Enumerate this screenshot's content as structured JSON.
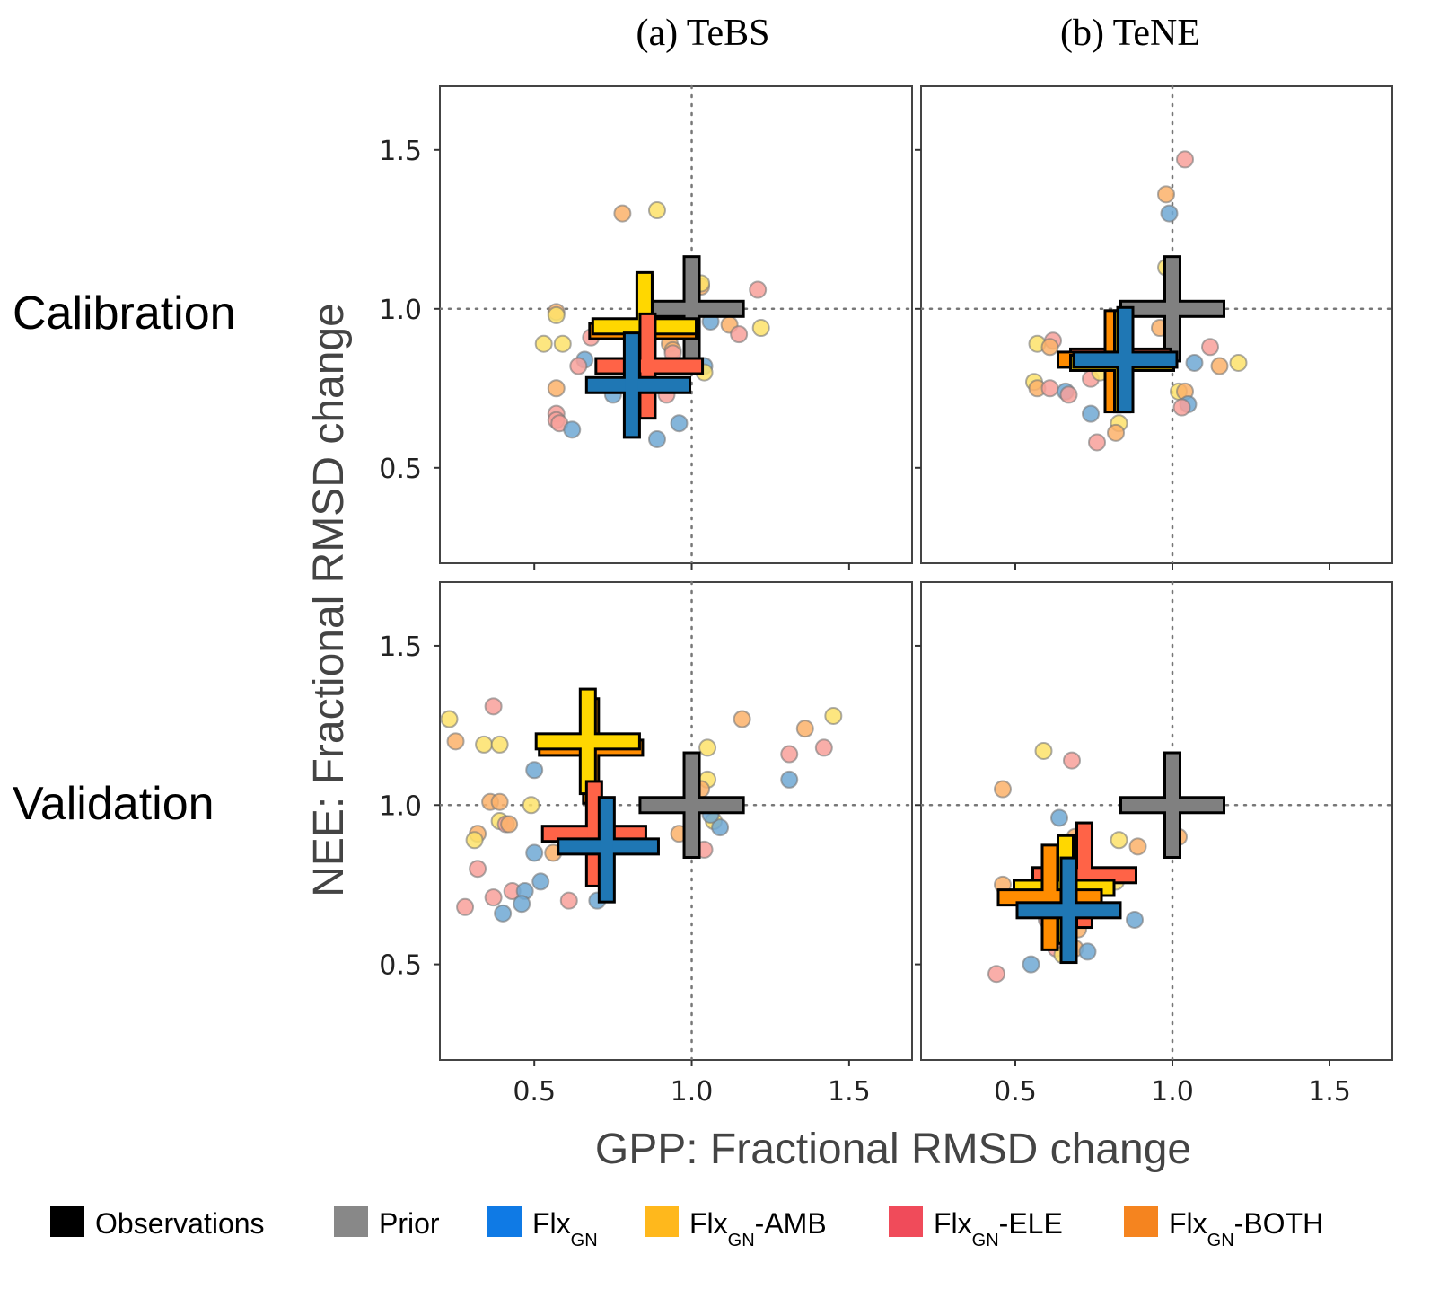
{
  "chart_data": {
    "type": "scatter",
    "column_titles": [
      "(a) TeBS",
      "(b) TeNE"
    ],
    "row_labels": [
      "Calibration",
      "Validation"
    ],
    "xlabel": "GPP: Fractional RMSD change",
    "ylabel": "NEE: Fractional RMSD change",
    "xlim": [
      0.2,
      1.7
    ],
    "ylim": [
      0.2,
      1.7
    ],
    "xticks": [
      0.5,
      1.0,
      1.5
    ],
    "yticks": [
      0.5,
      1.0,
      1.5
    ],
    "xtick_labels": [
      "0.5",
      "1.0",
      "1.5"
    ],
    "ytick_labels": [
      "0.5",
      "1.0",
      "1.5"
    ],
    "reference_lines": {
      "x": 1.0,
      "y": 1.0,
      "style": "dotted"
    },
    "grid": false,
    "legend": {
      "placement": "bottom",
      "entries": [
        {
          "key": "obs",
          "label": "Observations",
          "sub": "",
          "suffix": "",
          "color": "#000000"
        },
        {
          "key": "prior",
          "label": "Prior",
          "sub": "",
          "suffix": "",
          "color": "#888888"
        },
        {
          "key": "flx",
          "label": "Flx",
          "sub": "GN",
          "suffix": "",
          "color": "#0f7ae5"
        },
        {
          "key": "amb",
          "label": "Flx",
          "sub": "GN",
          "suffix": "-AMB",
          "color": "#ffb81c"
        },
        {
          "key": "ele",
          "label": "Flx",
          "sub": "GN",
          "suffix": "-ELE",
          "color": "#f04b5a"
        },
        {
          "key": "both",
          "label": "Flx",
          "sub": "GN",
          "suffix": "-BOTH",
          "color": "#f5841f"
        }
      ]
    },
    "series_colors": {
      "prior": "#808080",
      "flx": "#1f77b4",
      "amb": "#ffd700",
      "ele": "#ff6347",
      "both": "#ff8c00"
    },
    "point_colors": {
      "flx": "#6fa8d4",
      "amb": "#fde26a",
      "ele": "#f8a09a",
      "both": "#fbb16a"
    },
    "panels": [
      {
        "id": "tebs-calibration",
        "column": 0,
        "row": 0,
        "crosses": [
          {
            "series": "prior",
            "x": 1.0,
            "y": 1.0,
            "x_range": [
              0.84,
              1.16
            ],
            "y_range": [
              0.84,
              1.16
            ]
          },
          {
            "series": "flx",
            "x": 0.81,
            "y": 0.76,
            "x_range": [
              0.67,
              0.99
            ],
            "y_range": [
              0.6,
              0.92
            ]
          },
          {
            "series": "ele",
            "x": 0.86,
            "y": 0.82,
            "x_range": [
              0.7,
              1.03
            ],
            "y_range": [
              0.66,
              0.98
            ]
          },
          {
            "series": "amb",
            "x": 0.85,
            "y": 0.945,
            "x_range": [
              0.69,
              1.01
            ],
            "y_range": [
              0.79,
              1.11
            ]
          },
          {
            "series": "both",
            "x": 0.85,
            "y": 0.93,
            "x_range": [
              0.68,
              1.01
            ],
            "y_range": [
              0.77,
              1.1
            ]
          }
        ],
        "points": [
          {
            "series": "both",
            "x": 0.78,
            "y": 1.3
          },
          {
            "series": "amb",
            "x": 0.89,
            "y": 1.31
          },
          {
            "series": "both",
            "x": 0.57,
            "y": 0.99
          },
          {
            "series": "amb",
            "x": 0.57,
            "y": 0.98
          },
          {
            "series": "amb",
            "x": 0.53,
            "y": 0.89
          },
          {
            "series": "amb",
            "x": 0.59,
            "y": 0.89
          },
          {
            "series": "ele",
            "x": 0.68,
            "y": 0.91
          },
          {
            "series": "flx",
            "x": 0.66,
            "y": 0.84
          },
          {
            "series": "ele",
            "x": 0.64,
            "y": 0.82
          },
          {
            "series": "both",
            "x": 0.57,
            "y": 0.75
          },
          {
            "series": "ele",
            "x": 0.57,
            "y": 0.67
          },
          {
            "series": "ele",
            "x": 0.57,
            "y": 0.65
          },
          {
            "series": "ele",
            "x": 0.58,
            "y": 0.64
          },
          {
            "series": "flx",
            "x": 0.62,
            "y": 0.62
          },
          {
            "series": "flx",
            "x": 0.75,
            "y": 0.73
          },
          {
            "series": "ele",
            "x": 0.92,
            "y": 0.73
          },
          {
            "series": "flx",
            "x": 0.96,
            "y": 0.64
          },
          {
            "series": "flx",
            "x": 0.89,
            "y": 0.59
          },
          {
            "series": "both",
            "x": 0.93,
            "y": 0.89
          },
          {
            "series": "both",
            "x": 0.94,
            "y": 0.87
          },
          {
            "series": "ele",
            "x": 0.94,
            "y": 0.86
          },
          {
            "series": "flx",
            "x": 1.04,
            "y": 0.82
          },
          {
            "series": "both",
            "x": 1.03,
            "y": 1.07
          },
          {
            "series": "amb",
            "x": 1.03,
            "y": 1.08
          },
          {
            "series": "flx",
            "x": 1.06,
            "y": 0.96
          },
          {
            "series": "both",
            "x": 1.12,
            "y": 0.95
          },
          {
            "series": "ele",
            "x": 1.15,
            "y": 0.92
          },
          {
            "series": "amb",
            "x": 1.22,
            "y": 0.94
          },
          {
            "series": "ele",
            "x": 1.21,
            "y": 1.06
          },
          {
            "series": "amb",
            "x": 1.04,
            "y": 0.8
          }
        ]
      },
      {
        "id": "tene-calibration",
        "column": 1,
        "row": 0,
        "crosses": [
          {
            "series": "prior",
            "x": 1.0,
            "y": 1.0,
            "x_range": [
              0.84,
              1.16
            ],
            "y_range": [
              0.84,
              1.16
            ]
          },
          {
            "series": "flx",
            "x": 0.85,
            "y": 0.84,
            "x_range": [
              0.69,
              1.01
            ],
            "y_range": [
              0.68,
              1.0
            ]
          },
          {
            "series": "amb",
            "x": 0.84,
            "y": 0.83,
            "x_range": [
              0.68,
              1.0
            ],
            "y_range": [
              0.68,
              0.99
            ]
          },
          {
            "series": "both",
            "x": 0.81,
            "y": 0.84,
            "x_range": [
              0.64,
              0.98
            ],
            "y_range": [
              0.68,
              0.99
            ]
          },
          {
            "series": "ele",
            "x": 0.84,
            "y": 0.85,
            "x_range": [
              0.68,
              0.99
            ],
            "y_range": [
              0.69,
              0.98
            ]
          }
        ],
        "points": [
          {
            "series": "ele",
            "x": 1.04,
            "y": 1.47
          },
          {
            "series": "both",
            "x": 0.98,
            "y": 1.36
          },
          {
            "series": "flx",
            "x": 0.99,
            "y": 1.3
          },
          {
            "series": "amb",
            "x": 0.98,
            "y": 1.13
          },
          {
            "series": "both",
            "x": 0.96,
            "y": 0.94
          },
          {
            "series": "amb",
            "x": 0.57,
            "y": 0.89
          },
          {
            "series": "ele",
            "x": 0.62,
            "y": 0.9
          },
          {
            "series": "both",
            "x": 0.61,
            "y": 0.88
          },
          {
            "series": "amb",
            "x": 0.56,
            "y": 0.77
          },
          {
            "series": "both",
            "x": 0.57,
            "y": 0.75
          },
          {
            "series": "ele",
            "x": 0.61,
            "y": 0.75
          },
          {
            "series": "flx",
            "x": 0.66,
            "y": 0.74
          },
          {
            "series": "ele",
            "x": 0.67,
            "y": 0.73
          },
          {
            "series": "ele",
            "x": 0.74,
            "y": 0.78
          },
          {
            "series": "amb",
            "x": 0.77,
            "y": 0.8
          },
          {
            "series": "flx",
            "x": 0.74,
            "y": 0.67
          },
          {
            "series": "amb",
            "x": 0.83,
            "y": 0.64
          },
          {
            "series": "both",
            "x": 0.82,
            "y": 0.61
          },
          {
            "series": "ele",
            "x": 0.76,
            "y": 0.58
          },
          {
            "series": "flx",
            "x": 1.07,
            "y": 0.83
          },
          {
            "series": "ele",
            "x": 1.12,
            "y": 0.88
          },
          {
            "series": "both",
            "x": 1.15,
            "y": 0.82
          },
          {
            "series": "amb",
            "x": 1.21,
            "y": 0.83
          },
          {
            "series": "amb",
            "x": 1.02,
            "y": 0.74
          },
          {
            "series": "both",
            "x": 1.04,
            "y": 0.74
          },
          {
            "series": "flx",
            "x": 1.05,
            "y": 0.7
          },
          {
            "series": "ele",
            "x": 1.03,
            "y": 0.69
          }
        ]
      },
      {
        "id": "tebs-validation",
        "column": 0,
        "row": 1,
        "crosses": [
          {
            "series": "prior",
            "x": 1.0,
            "y": 1.0,
            "x_range": [
              0.84,
              1.16
            ],
            "y_range": [
              0.84,
              1.16
            ]
          },
          {
            "series": "flx",
            "x": 0.73,
            "y": 0.87,
            "x_range": [
              0.58,
              0.89
            ],
            "y_range": [
              0.7,
              1.02
            ]
          },
          {
            "series": "ele",
            "x": 0.69,
            "y": 0.91,
            "x_range": [
              0.53,
              0.85
            ],
            "y_range": [
              0.75,
              1.07
            ]
          },
          {
            "series": "amb",
            "x": 0.67,
            "y": 1.2,
            "x_range": [
              0.51,
              0.83
            ],
            "y_range": [
              1.04,
              1.36
            ]
          },
          {
            "series": "both",
            "x": 0.68,
            "y": 1.18,
            "x_range": [
              0.52,
              0.84
            ],
            "y_range": [
              1.01,
              1.33
            ]
          }
        ],
        "points": [
          {
            "series": "amb",
            "x": 0.23,
            "y": 1.27
          },
          {
            "series": "both",
            "x": 0.25,
            "y": 1.2
          },
          {
            "series": "ele",
            "x": 0.37,
            "y": 1.31
          },
          {
            "series": "amb",
            "x": 0.34,
            "y": 1.19
          },
          {
            "series": "amb",
            "x": 0.39,
            "y": 1.19
          },
          {
            "series": "flx",
            "x": 0.5,
            "y": 1.11
          },
          {
            "series": "both",
            "x": 0.36,
            "y": 1.01
          },
          {
            "series": "both",
            "x": 0.39,
            "y": 1.01
          },
          {
            "series": "amb",
            "x": 0.49,
            "y": 1.0
          },
          {
            "series": "amb",
            "x": 0.39,
            "y": 0.95
          },
          {
            "series": "ele",
            "x": 0.41,
            "y": 0.94
          },
          {
            "series": "both",
            "x": 0.42,
            "y": 0.94
          },
          {
            "series": "both",
            "x": 0.32,
            "y": 0.91
          },
          {
            "series": "amb",
            "x": 0.31,
            "y": 0.89
          },
          {
            "series": "flx",
            "x": 0.5,
            "y": 0.85
          },
          {
            "series": "both",
            "x": 0.56,
            "y": 0.85
          },
          {
            "series": "ele",
            "x": 0.32,
            "y": 0.8
          },
          {
            "series": "ele",
            "x": 0.37,
            "y": 0.71
          },
          {
            "series": "ele",
            "x": 0.43,
            "y": 0.73
          },
          {
            "series": "flx",
            "x": 0.47,
            "y": 0.73
          },
          {
            "series": "flx",
            "x": 0.46,
            "y": 0.69
          },
          {
            "series": "flx",
            "x": 0.52,
            "y": 0.76
          },
          {
            "series": "ele",
            "x": 0.28,
            "y": 0.68
          },
          {
            "series": "flx",
            "x": 0.4,
            "y": 0.66
          },
          {
            "series": "ele",
            "x": 0.61,
            "y": 0.7
          },
          {
            "series": "flx",
            "x": 0.7,
            "y": 0.7
          },
          {
            "series": "amb",
            "x": 1.05,
            "y": 1.18
          },
          {
            "series": "amb",
            "x": 1.05,
            "y": 1.08
          },
          {
            "series": "both",
            "x": 1.03,
            "y": 1.05
          },
          {
            "series": "amb",
            "x": 1.07,
            "y": 0.95
          },
          {
            "series": "flx",
            "x": 1.09,
            "y": 0.93
          },
          {
            "series": "flx",
            "x": 1.06,
            "y": 0.97
          },
          {
            "series": "ele",
            "x": 1.04,
            "y": 0.86
          },
          {
            "series": "both",
            "x": 0.96,
            "y": 0.91
          },
          {
            "series": "both",
            "x": 1.16,
            "y": 1.27
          },
          {
            "series": "both",
            "x": 1.36,
            "y": 1.24
          },
          {
            "series": "amb",
            "x": 1.45,
            "y": 1.28
          },
          {
            "series": "ele",
            "x": 1.42,
            "y": 1.18
          },
          {
            "series": "ele",
            "x": 1.31,
            "y": 1.16
          },
          {
            "series": "flx",
            "x": 1.31,
            "y": 1.08
          }
        ]
      },
      {
        "id": "tene-validation",
        "column": 1,
        "row": 1,
        "crosses": [
          {
            "series": "prior",
            "x": 1.0,
            "y": 1.0,
            "x_range": [
              0.84,
              1.16
            ],
            "y_range": [
              0.84,
              1.16
            ]
          },
          {
            "series": "flx",
            "x": 0.67,
            "y": 0.67,
            "x_range": [
              0.51,
              0.83
            ],
            "y_range": [
              0.51,
              0.83
            ]
          },
          {
            "series": "both",
            "x": 0.61,
            "y": 0.71,
            "x_range": [
              0.45,
              0.77
            ],
            "y_range": [
              0.55,
              0.87
            ]
          },
          {
            "series": "amb",
            "x": 0.66,
            "y": 0.74,
            "x_range": [
              0.5,
              0.81
            ],
            "y_range": [
              0.57,
              0.9
            ]
          },
          {
            "series": "ele",
            "x": 0.72,
            "y": 0.78,
            "x_range": [
              0.56,
              0.88
            ],
            "y_range": [
              0.62,
              0.94
            ]
          }
        ],
        "points": [
          {
            "series": "amb",
            "x": 0.59,
            "y": 1.17
          },
          {
            "series": "ele",
            "x": 0.68,
            "y": 1.14
          },
          {
            "series": "both",
            "x": 0.46,
            "y": 1.05
          },
          {
            "series": "flx",
            "x": 0.64,
            "y": 0.96
          },
          {
            "series": "both",
            "x": 0.69,
            "y": 0.9
          },
          {
            "series": "amb",
            "x": 0.83,
            "y": 0.89
          },
          {
            "series": "both",
            "x": 0.89,
            "y": 0.87
          },
          {
            "series": "both",
            "x": 1.02,
            "y": 0.9
          },
          {
            "series": "both",
            "x": 0.46,
            "y": 0.75
          },
          {
            "series": "amb",
            "x": 0.82,
            "y": 0.76
          },
          {
            "series": "ele",
            "x": 0.6,
            "y": 0.64
          },
          {
            "series": "flx",
            "x": 0.88,
            "y": 0.64
          },
          {
            "series": "both",
            "x": 0.7,
            "y": 0.61
          },
          {
            "series": "ele",
            "x": 0.63,
            "y": 0.55
          },
          {
            "series": "both",
            "x": 0.69,
            "y": 0.55
          },
          {
            "series": "flx",
            "x": 0.73,
            "y": 0.54
          },
          {
            "series": "amb",
            "x": 0.65,
            "y": 0.53
          },
          {
            "series": "flx",
            "x": 0.55,
            "y": 0.5
          },
          {
            "series": "ele",
            "x": 0.44,
            "y": 0.47
          }
        ]
      }
    ]
  }
}
